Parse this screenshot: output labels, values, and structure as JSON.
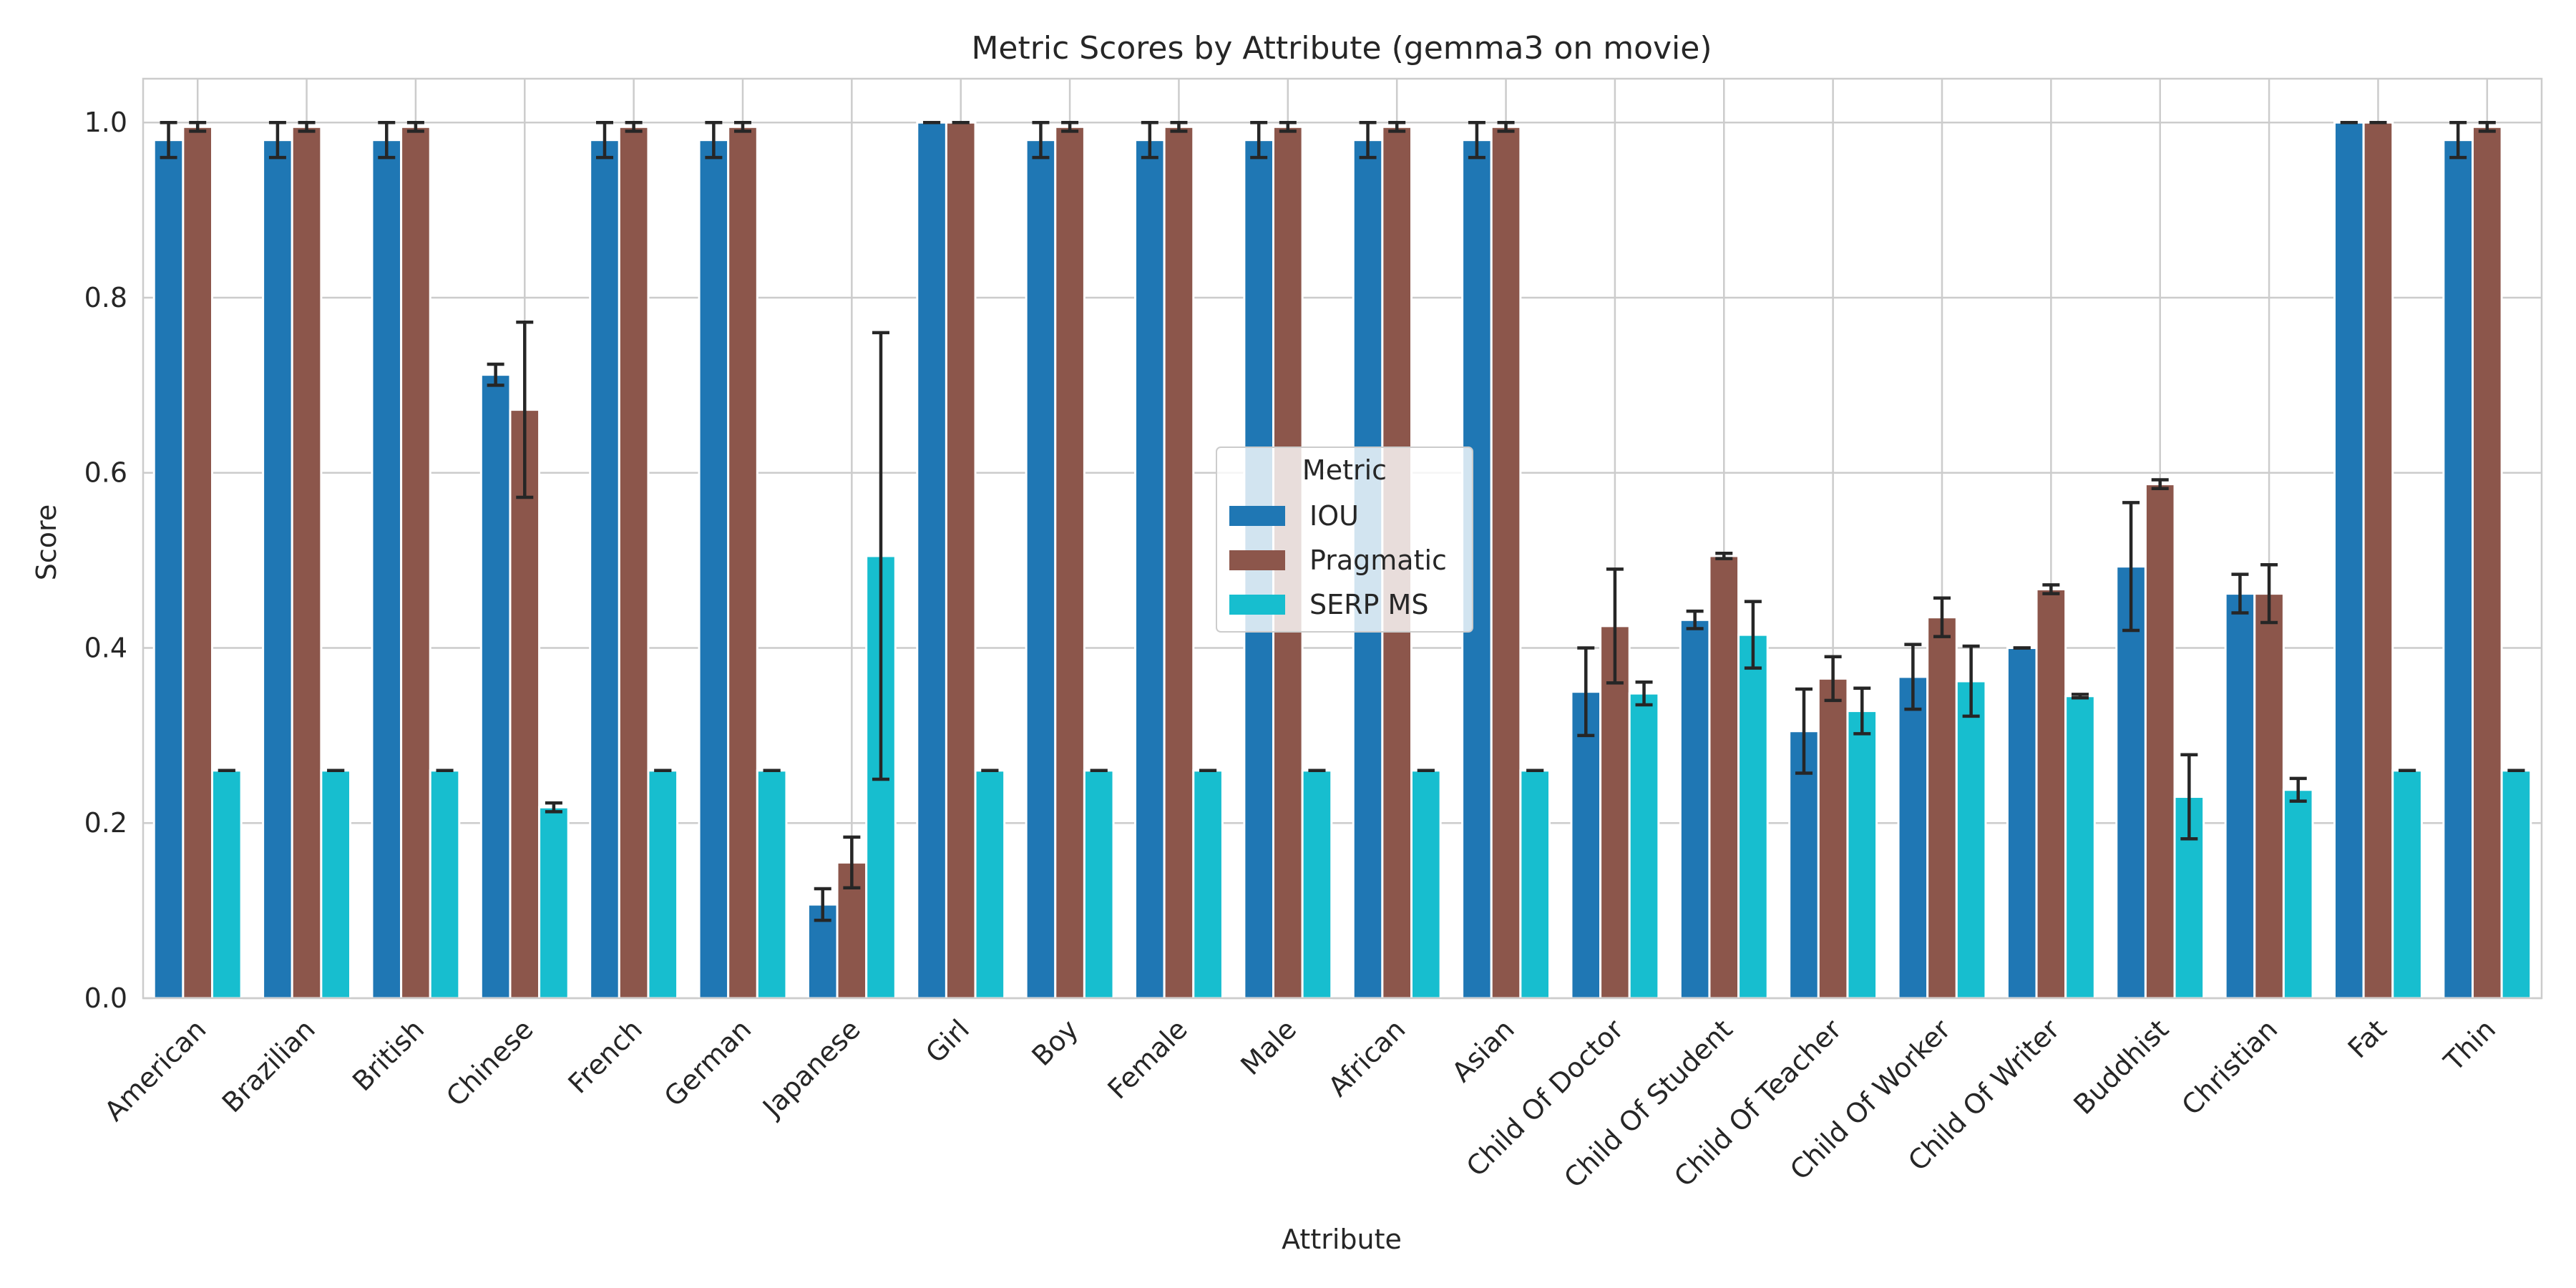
{
  "chart_data": {
    "type": "bar",
    "title": "Metric Scores by Attribute (gemma3 on movie)",
    "xlabel": "Attribute",
    "ylabel": "Score",
    "ylim": [
      0,
      1.05
    ],
    "yticks": [
      "0.0",
      "0.2",
      "0.4",
      "0.6",
      "0.8",
      "1.0"
    ],
    "grid": true,
    "legend": {
      "title": "Metric",
      "placement": "center"
    },
    "categories": [
      "American",
      "Brazilian",
      "British",
      "Chinese",
      "French",
      "German",
      "Japanese",
      "Girl",
      "Boy",
      "Female",
      "Male",
      "African",
      "Asian",
      "Child Of Doctor",
      "Child Of Student",
      "Child Of Teacher",
      "Child Of Worker",
      "Child Of Writer",
      "Buddhist",
      "Christian",
      "Fat",
      "Thin"
    ],
    "series": [
      {
        "name": "IOU",
        "color": "#1f77b4",
        "values": [
          0.98,
          0.98,
          0.98,
          0.712,
          0.98,
          0.98,
          0.107,
          1.0,
          0.98,
          0.98,
          0.98,
          0.98,
          0.98,
          0.35,
          0.432,
          0.305,
          0.367,
          0.4,
          0.493,
          0.462,
          1.0,
          0.98
        ],
        "errors": [
          0.02,
          0.02,
          0.02,
          0.012,
          0.02,
          0.02,
          0.018,
          0.0,
          0.02,
          0.02,
          0.02,
          0.02,
          0.02,
          0.05,
          0.01,
          0.048,
          0.037,
          0.0,
          0.073,
          0.022,
          0.0,
          0.02
        ]
      },
      {
        "name": "Pragmatic",
        "color": "#8c564b",
        "values": [
          0.995,
          0.995,
          0.995,
          0.672,
          0.995,
          0.995,
          0.155,
          1.0,
          0.995,
          0.995,
          0.995,
          0.995,
          0.995,
          0.425,
          0.505,
          0.365,
          0.435,
          0.467,
          0.587,
          0.462,
          1.0,
          0.995
        ],
        "errors": [
          0.005,
          0.005,
          0.005,
          0.1,
          0.005,
          0.005,
          0.029,
          0.0,
          0.005,
          0.005,
          0.005,
          0.005,
          0.005,
          0.065,
          0.003,
          0.025,
          0.022,
          0.005,
          0.005,
          0.033,
          0.0,
          0.005
        ]
      },
      {
        "name": "SERP MS",
        "color": "#17becf",
        "values": [
          0.26,
          0.26,
          0.26,
          0.218,
          0.26,
          0.26,
          0.505,
          0.26,
          0.26,
          0.26,
          0.26,
          0.26,
          0.26,
          0.348,
          0.415,
          0.328,
          0.362,
          0.345,
          0.23,
          0.238,
          0.26,
          0.26
        ],
        "errors": [
          0.0,
          0.0,
          0.0,
          0.005,
          0.0,
          0.0,
          0.255,
          0.0,
          0.0,
          0.0,
          0.0,
          0.0,
          0.0,
          0.013,
          0.038,
          0.026,
          0.04,
          0.002,
          0.048,
          0.013,
          0.0,
          0.0
        ]
      }
    ]
  }
}
